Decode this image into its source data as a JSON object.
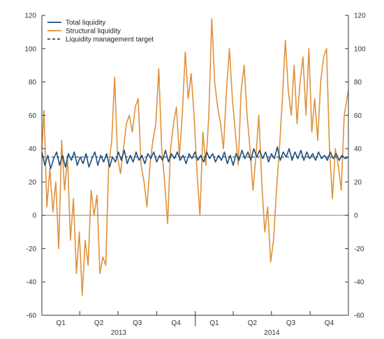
{
  "chart_data": {
    "type": "line",
    "title": "",
    "xlabel": "",
    "ylabel": "",
    "ylim": [
      -60,
      120
    ],
    "yticks": [
      -60,
      -40,
      -20,
      0,
      20,
      40,
      60,
      80,
      100,
      120
    ],
    "ytick_labels": [
      "-60",
      "-40",
      "-20",
      "0",
      "20",
      "40",
      "60",
      "80",
      "100",
      "120"
    ],
    "xlim": [
      "2013-01-01",
      "2014-12-31"
    ],
    "quarter_labels": [
      "Q1",
      "Q2",
      "Q3",
      "Q4",
      "Q1",
      "Q2",
      "Q3",
      "Q4"
    ],
    "year_labels": [
      "2013",
      "2014"
    ],
    "grid": false,
    "legend_position": "top-left",
    "colors": {
      "total": "#1f4e79",
      "structural": "#e0913a",
      "target": "#1f4e79",
      "axis": "#333333",
      "zero_line": "#888888"
    },
    "series": [
      {
        "name": "Total liquidity",
        "style": "solid",
        "points": [
          [
            "2013-01-01",
            38
          ],
          [
            "2013-01-08",
            30
          ],
          [
            "2013-01-15",
            36
          ],
          [
            "2013-01-22",
            28
          ],
          [
            "2013-01-29",
            34
          ],
          [
            "2013-02-05",
            38
          ],
          [
            "2013-02-12",
            30
          ],
          [
            "2013-02-19",
            36
          ],
          [
            "2013-02-26",
            29
          ],
          [
            "2013-03-05",
            37
          ],
          [
            "2013-03-12",
            33
          ],
          [
            "2013-03-19",
            38
          ],
          [
            "2013-03-26",
            30
          ],
          [
            "2013-04-02",
            35
          ],
          [
            "2013-04-09",
            31
          ],
          [
            "2013-04-16",
            37
          ],
          [
            "2013-04-23",
            29
          ],
          [
            "2013-04-30",
            34
          ],
          [
            "2013-05-07",
            38
          ],
          [
            "2013-05-14",
            30
          ],
          [
            "2013-05-21",
            36
          ],
          [
            "2013-05-28",
            32
          ],
          [
            "2013-06-04",
            37
          ],
          [
            "2013-06-11",
            29
          ],
          [
            "2013-06-18",
            35
          ],
          [
            "2013-06-25",
            32
          ],
          [
            "2013-07-02",
            38
          ],
          [
            "2013-07-09",
            33
          ],
          [
            "2013-07-16",
            39
          ],
          [
            "2013-07-23",
            31
          ],
          [
            "2013-07-30",
            36
          ],
          [
            "2013-08-06",
            32
          ],
          [
            "2013-08-13",
            38
          ],
          [
            "2013-08-20",
            33
          ],
          [
            "2013-08-27",
            36
          ],
          [
            "2013-09-03",
            31
          ],
          [
            "2013-09-10",
            37
          ],
          [
            "2013-09-17",
            34
          ],
          [
            "2013-09-24",
            38
          ],
          [
            "2013-10-01",
            32
          ],
          [
            "2013-10-08",
            36
          ],
          [
            "2013-10-15",
            33
          ],
          [
            "2013-10-22",
            39
          ],
          [
            "2013-10-29",
            32
          ],
          [
            "2013-11-05",
            37
          ],
          [
            "2013-11-12",
            34
          ],
          [
            "2013-11-19",
            38
          ],
          [
            "2013-11-26",
            33
          ],
          [
            "2013-12-03",
            36
          ],
          [
            "2013-12-10",
            31
          ],
          [
            "2013-12-17",
            37
          ],
          [
            "2013-12-24",
            34
          ],
          [
            "2013-12-31",
            38
          ],
          [
            "2014-01-07",
            33
          ],
          [
            "2014-01-14",
            36
          ],
          [
            "2014-01-21",
            32
          ],
          [
            "2014-01-28",
            38
          ],
          [
            "2014-02-04",
            34
          ],
          [
            "2014-02-11",
            37
          ],
          [
            "2014-02-18",
            32
          ],
          [
            "2014-02-25",
            36
          ],
          [
            "2014-03-04",
            33
          ],
          [
            "2014-03-11",
            38
          ],
          [
            "2014-03-18",
            31
          ],
          [
            "2014-03-25",
            36
          ],
          [
            "2014-04-01",
            30
          ],
          [
            "2014-04-08",
            37
          ],
          [
            "2014-04-15",
            33
          ],
          [
            "2014-04-22",
            39
          ],
          [
            "2014-04-29",
            34
          ],
          [
            "2014-05-06",
            38
          ],
          [
            "2014-05-13",
            33
          ],
          [
            "2014-05-20",
            40
          ],
          [
            "2014-05-27",
            35
          ],
          [
            "2014-06-03",
            39
          ],
          [
            "2014-06-10",
            34
          ],
          [
            "2014-06-17",
            38
          ],
          [
            "2014-06-24",
            32
          ],
          [
            "2014-07-01",
            37
          ],
          [
            "2014-07-08",
            34
          ],
          [
            "2014-07-15",
            41
          ],
          [
            "2014-07-22",
            33
          ],
          [
            "2014-07-29",
            38
          ],
          [
            "2014-08-05",
            35
          ],
          [
            "2014-08-12",
            40
          ],
          [
            "2014-08-19",
            33
          ],
          [
            "2014-08-26",
            38
          ],
          [
            "2014-09-02",
            34
          ],
          [
            "2014-09-09",
            39
          ],
          [
            "2014-09-16",
            33
          ],
          [
            "2014-09-23",
            38
          ],
          [
            "2014-09-30",
            34
          ],
          [
            "2014-10-07",
            37
          ],
          [
            "2014-10-14",
            33
          ],
          [
            "2014-10-21",
            38
          ],
          [
            "2014-10-28",
            34
          ],
          [
            "2014-11-04",
            36
          ],
          [
            "2014-11-11",
            33
          ],
          [
            "2014-11-18",
            38
          ],
          [
            "2014-11-25",
            34
          ],
          [
            "2014-12-02",
            37
          ],
          [
            "2014-12-09",
            33
          ],
          [
            "2014-12-16",
            36
          ],
          [
            "2014-12-23",
            34
          ],
          [
            "2014-12-31",
            35
          ]
        ]
      },
      {
        "name": "Structural liquidity",
        "style": "solid",
        "points": [
          [
            "2013-01-01",
            40
          ],
          [
            "2013-01-06",
            63
          ],
          [
            "2013-01-13",
            5
          ],
          [
            "2013-01-20",
            28
          ],
          [
            "2013-01-27",
            2
          ],
          [
            "2013-02-03",
            20
          ],
          [
            "2013-02-10",
            -20
          ],
          [
            "2013-02-17",
            45
          ],
          [
            "2013-02-24",
            15
          ],
          [
            "2013-03-03",
            35
          ],
          [
            "2013-03-10",
            -15
          ],
          [
            "2013-03-17",
            10
          ],
          [
            "2013-03-24",
            -35
          ],
          [
            "2013-03-31",
            -10
          ],
          [
            "2013-04-07",
            -48
          ],
          [
            "2013-04-14",
            -15
          ],
          [
            "2013-04-21",
            -30
          ],
          [
            "2013-04-28",
            15
          ],
          [
            "2013-05-05",
            0
          ],
          [
            "2013-05-12",
            12
          ],
          [
            "2013-05-19",
            -35
          ],
          [
            "2013-05-26",
            -25
          ],
          [
            "2013-06-02",
            -30
          ],
          [
            "2013-06-09",
            30
          ],
          [
            "2013-06-16",
            45
          ],
          [
            "2013-06-23",
            83
          ],
          [
            "2013-06-30",
            35
          ],
          [
            "2013-07-07",
            25
          ],
          [
            "2013-07-14",
            40
          ],
          [
            "2013-07-21",
            55
          ],
          [
            "2013-07-28",
            60
          ],
          [
            "2013-08-04",
            50
          ],
          [
            "2013-08-11",
            65
          ],
          [
            "2013-08-18",
            70
          ],
          [
            "2013-08-25",
            30
          ],
          [
            "2013-09-01",
            20
          ],
          [
            "2013-09-08",
            5
          ],
          [
            "2013-09-15",
            30
          ],
          [
            "2013-09-22",
            45
          ],
          [
            "2013-09-29",
            55
          ],
          [
            "2013-10-06",
            88
          ],
          [
            "2013-10-13",
            40
          ],
          [
            "2013-10-20",
            20
          ],
          [
            "2013-10-27",
            -5
          ],
          [
            "2013-11-03",
            40
          ],
          [
            "2013-11-10",
            55
          ],
          [
            "2013-11-17",
            65
          ],
          [
            "2013-11-24",
            35
          ],
          [
            "2013-12-01",
            60
          ],
          [
            "2013-12-08",
            98
          ],
          [
            "2013-12-15",
            70
          ],
          [
            "2013-12-22",
            85
          ],
          [
            "2013-12-29",
            60
          ],
          [
            "2014-01-05",
            25
          ],
          [
            "2014-01-12",
            0
          ],
          [
            "2014-01-19",
            50
          ],
          [
            "2014-01-26",
            30
          ],
          [
            "2014-02-02",
            60
          ],
          [
            "2014-02-09",
            118
          ],
          [
            "2014-02-16",
            80
          ],
          [
            "2014-02-23",
            65
          ],
          [
            "2014-03-02",
            55
          ],
          [
            "2014-03-09",
            40
          ],
          [
            "2014-03-16",
            75
          ],
          [
            "2014-03-23",
            100
          ],
          [
            "2014-03-30",
            70
          ],
          [
            "2014-04-06",
            50
          ],
          [
            "2014-04-13",
            30
          ],
          [
            "2014-04-20",
            75
          ],
          [
            "2014-04-27",
            90
          ],
          [
            "2014-05-04",
            60
          ],
          [
            "2014-05-11",
            40
          ],
          [
            "2014-05-18",
            15
          ],
          [
            "2014-05-25",
            35
          ],
          [
            "2014-06-01",
            60
          ],
          [
            "2014-06-08",
            20
          ],
          [
            "2014-06-15",
            -10
          ],
          [
            "2014-06-22",
            5
          ],
          [
            "2014-06-29",
            -28
          ],
          [
            "2014-07-06",
            -15
          ],
          [
            "2014-07-13",
            15
          ],
          [
            "2014-07-20",
            40
          ],
          [
            "2014-07-27",
            70
          ],
          [
            "2014-08-03",
            105
          ],
          [
            "2014-08-10",
            75
          ],
          [
            "2014-08-17",
            60
          ],
          [
            "2014-08-24",
            90
          ],
          [
            "2014-08-31",
            55
          ],
          [
            "2014-09-07",
            80
          ],
          [
            "2014-09-14",
            95
          ],
          [
            "2014-09-21",
            60
          ],
          [
            "2014-09-28",
            100
          ],
          [
            "2014-10-05",
            50
          ],
          [
            "2014-10-12",
            70
          ],
          [
            "2014-10-19",
            45
          ],
          [
            "2014-10-26",
            80
          ],
          [
            "2014-11-02",
            95
          ],
          [
            "2014-11-09",
            100
          ],
          [
            "2014-11-16",
            40
          ],
          [
            "2014-11-23",
            10
          ],
          [
            "2014-11-30",
            40
          ],
          [
            "2014-12-07",
            30
          ],
          [
            "2014-12-14",
            15
          ],
          [
            "2014-12-21",
            60
          ],
          [
            "2014-12-31",
            75
          ]
        ]
      },
      {
        "name": "Liquidity management target",
        "style": "dashed",
        "points": [
          [
            "2013-01-01",
            35
          ],
          [
            "2014-12-31",
            35
          ]
        ]
      }
    ]
  }
}
